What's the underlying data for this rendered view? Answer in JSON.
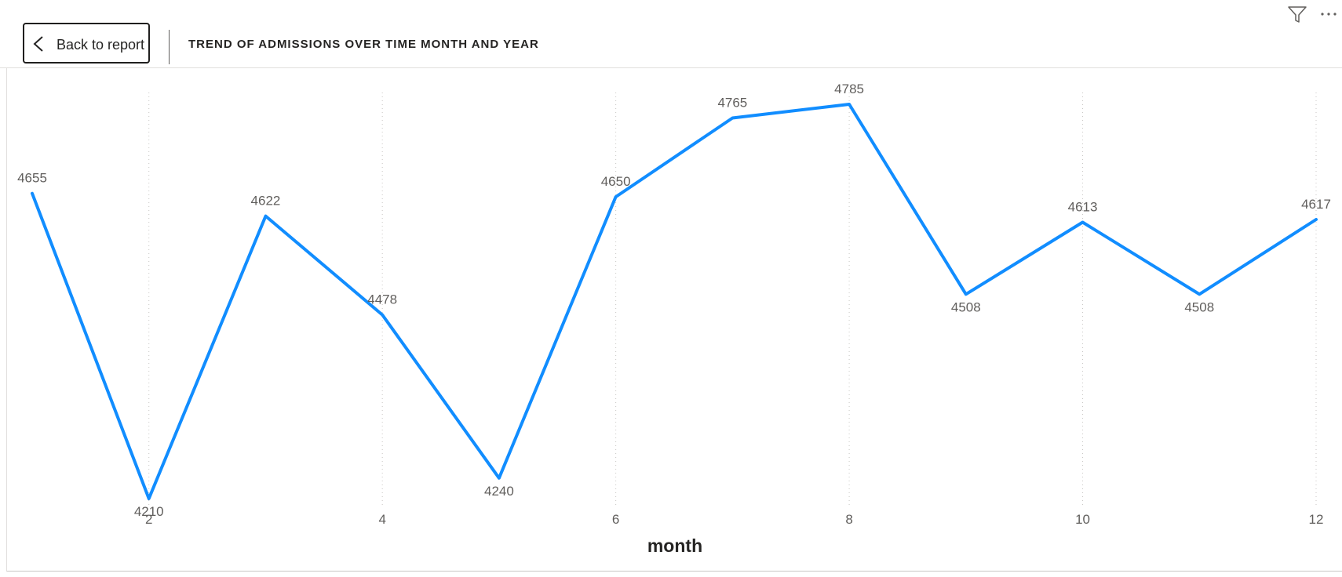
{
  "header": {
    "back_label": "Back to report",
    "title": "TREND OF ADMISSIONS OVER TIME MONTH AND YEAR"
  },
  "toolbar": {
    "icons": [
      "chevron-left-icon",
      "filter-icon",
      "more-options-icon"
    ]
  },
  "chart_data": {
    "type": "line",
    "x": [
      1,
      2,
      3,
      4,
      5,
      6,
      7,
      8,
      9,
      10,
      11,
      12
    ],
    "series": [
      {
        "values": [
          4655,
          4210,
          4622,
          4478,
          4240,
          4650,
          4765,
          4785,
          4508,
          4613,
          4508,
          4617
        ],
        "labels": [
          "4655",
          "4210",
          "4622",
          "4478",
          "4240",
          "4650",
          "4765",
          "4785",
          "4508",
          "4613",
          "4508",
          "4617"
        ],
        "color": "#118dff"
      }
    ],
    "xticks": [
      2,
      4,
      6,
      8,
      10,
      12
    ],
    "xtick_labels": [
      "2",
      "4",
      "6",
      "8",
      "10",
      "12"
    ],
    "xlabel": "month",
    "ylabel": "",
    "xlim": [
      1,
      12
    ],
    "ylim": [
      4210,
      4785
    ],
    "grid": "vertical-dotted",
    "legend": "none",
    "gridline_color": "#c8c6c4"
  }
}
